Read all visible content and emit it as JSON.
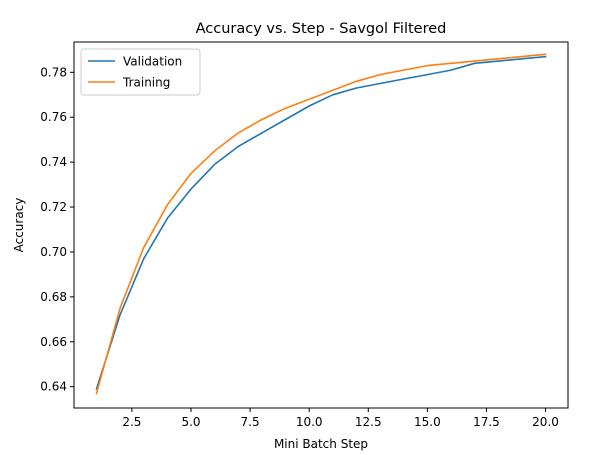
{
  "chart_data": {
    "type": "line",
    "title": "Accuracy vs. Step - Savgol Filtered",
    "xlabel": "Mini Batch Step",
    "ylabel": "Accuracy",
    "xlim": [
      0.05,
      20.95
    ],
    "ylim": [
      0.6305,
      0.7935
    ],
    "x_ticks": [
      2.5,
      5.0,
      7.5,
      10.0,
      12.5,
      15.0,
      17.5,
      20.0
    ],
    "x_tick_labels": [
      "2.5",
      "5.0",
      "7.5",
      "10.0",
      "12.5",
      "15.0",
      "17.5",
      "20.0"
    ],
    "y_ticks": [
      0.64,
      0.66,
      0.68,
      0.7,
      0.72,
      0.74,
      0.76,
      0.78
    ],
    "y_tick_labels": [
      "0.64",
      "0.66",
      "0.68",
      "0.70",
      "0.72",
      "0.74",
      "0.76",
      "0.78"
    ],
    "grid": false,
    "legend_position": "top-left",
    "x": [
      1,
      2,
      3,
      4,
      5,
      6,
      7,
      8,
      9,
      10,
      11,
      12,
      13,
      14,
      15,
      16,
      17,
      18,
      19,
      20
    ],
    "series": [
      {
        "name": "Validation",
        "color": "#1f77b4",
        "values": [
          0.639,
          0.672,
          0.697,
          0.715,
          0.728,
          0.739,
          0.747,
          0.753,
          0.759,
          0.765,
          0.77,
          0.773,
          0.775,
          0.777,
          0.779,
          0.781,
          0.784,
          0.785,
          0.786,
          0.787
        ]
      },
      {
        "name": "Training",
        "color": "#ff7f0e",
        "values": [
          0.637,
          0.675,
          0.702,
          0.721,
          0.735,
          0.745,
          0.753,
          0.759,
          0.764,
          0.768,
          0.772,
          0.776,
          0.779,
          0.781,
          0.783,
          0.784,
          0.785,
          0.786,
          0.787,
          0.788
        ]
      }
    ]
  }
}
